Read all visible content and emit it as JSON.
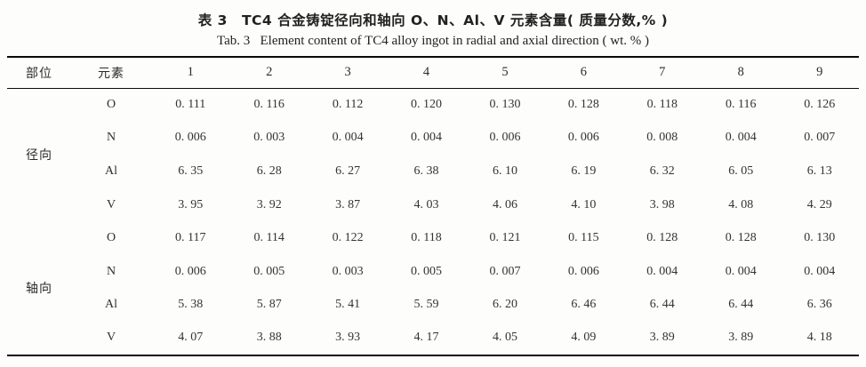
{
  "page": {
    "background": "#fdfdfc",
    "text_color": "#2e2e2e",
    "rule_color": "#0a0a0a"
  },
  "title": {
    "zh": "表 3　TC4 合金铸锭径向和轴向 O、N、Al、V 元素含量( 质量分数,% )",
    "en": "Tab. 3   Element content of TC4 alloy ingot in radial and axial direction ( wt. % )"
  },
  "table": {
    "headers": [
      "部位",
      "元素",
      "1",
      "2",
      "3",
      "4",
      "5",
      "6",
      "7",
      "8",
      "9"
    ],
    "groups": [
      {
        "label": "径向",
        "rows": [
          {
            "element": "O",
            "values": [
              "0. 111",
              "0. 116",
              "0. 112",
              "0. 120",
              "0. 130",
              "0. 128",
              "0. 118",
              "0. 116",
              "0. 126"
            ]
          },
          {
            "element": "N",
            "values": [
              "0. 006",
              "0. 003",
              "0. 004",
              "0. 004",
              "0. 006",
              "0. 006",
              "0. 008",
              "0. 004",
              "0. 007"
            ]
          },
          {
            "element": "Al",
            "values": [
              "6. 35",
              "6. 28",
              "6. 27",
              "6. 38",
              "6. 10",
              "6. 19",
              "6. 32",
              "6. 05",
              "6. 13"
            ]
          },
          {
            "element": "V",
            "values": [
              "3. 95",
              "3. 92",
              "3. 87",
              "4. 03",
              "4. 06",
              "4. 10",
              "3. 98",
              "4. 08",
              "4. 29"
            ]
          }
        ]
      },
      {
        "label": "轴向",
        "rows": [
          {
            "element": "O",
            "values": [
              "0. 117",
              "0. 114",
              "0. 122",
              "0. 118",
              "0. 121",
              "0. 115",
              "0. 128",
              "0. 128",
              "0. 130"
            ]
          },
          {
            "element": "N",
            "values": [
              "0. 006",
              "0. 005",
              "0. 003",
              "0. 005",
              "0. 007",
              "0. 006",
              "0. 004",
              "0. 004",
              "0. 004"
            ]
          },
          {
            "element": "Al",
            "values": [
              "5. 38",
              "5. 87",
              "5. 41",
              "5. 59",
              "6. 20",
              "6. 46",
              "6. 44",
              "6. 44",
              "6. 36"
            ]
          },
          {
            "element": "V",
            "values": [
              "4. 07",
              "3. 88",
              "3. 93",
              "4. 17",
              "4. 05",
              "4. 09",
              "3. 89",
              "3. 89",
              "4. 18"
            ]
          }
        ]
      }
    ]
  }
}
